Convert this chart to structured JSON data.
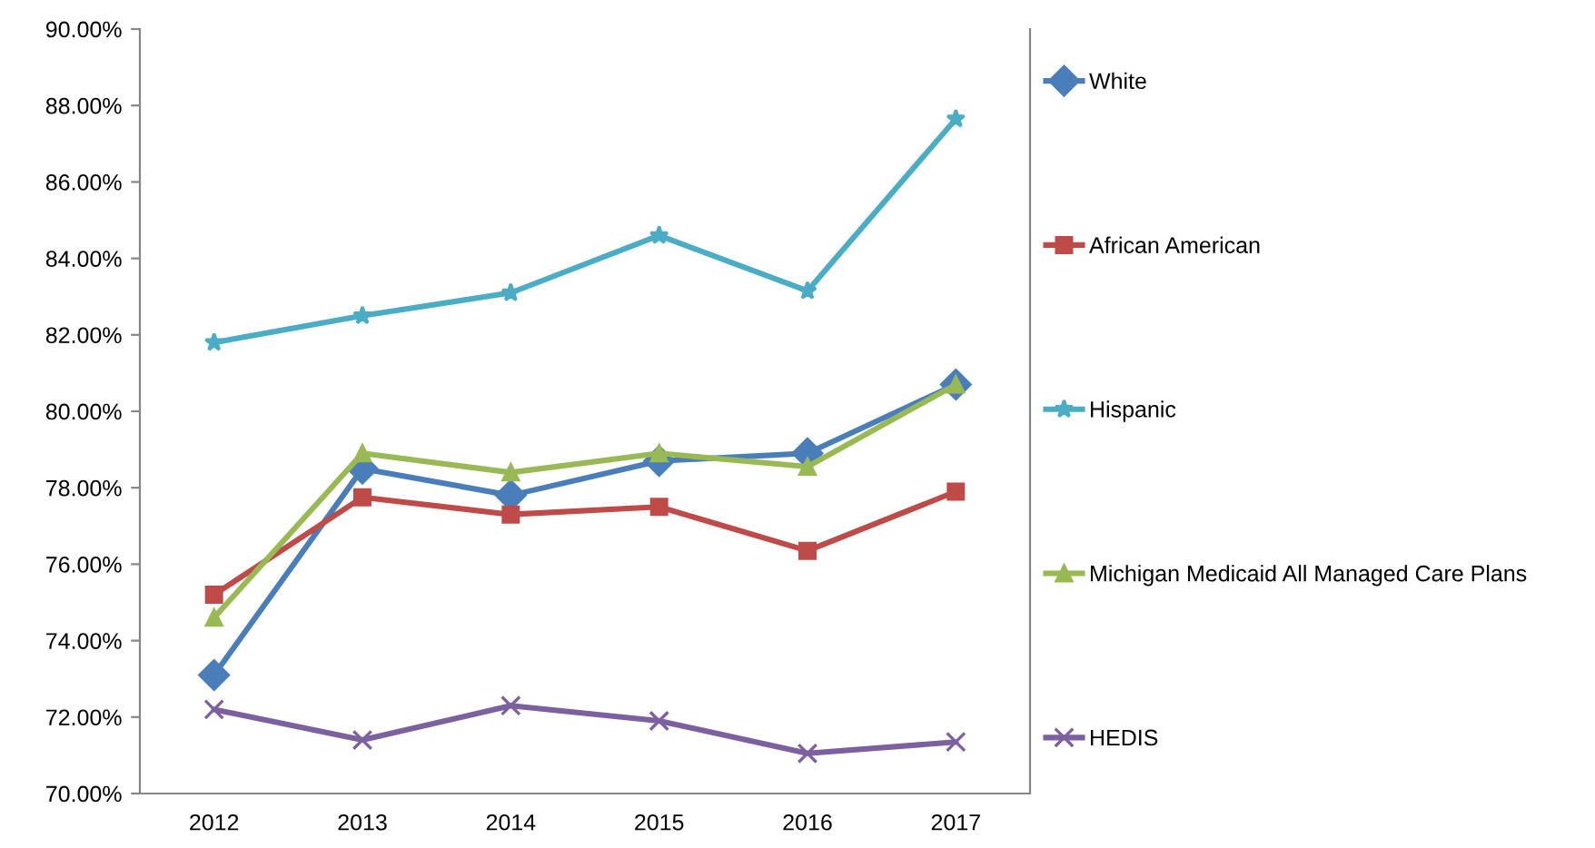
{
  "chart_data": {
    "type": "line",
    "categories": [
      "2012",
      "2013",
      "2014",
      "2015",
      "2016",
      "2017"
    ],
    "series": [
      {
        "name": "White",
        "color": "#4a7ebb",
        "marker": "diamond",
        "values": [
          73.1,
          78.5,
          77.8,
          78.7,
          78.9,
          80.7
        ]
      },
      {
        "name": "African American",
        "color": "#be4b48",
        "marker": "square",
        "values": [
          75.2,
          77.75,
          77.3,
          77.5,
          76.35,
          77.9
        ]
      },
      {
        "name": "Hispanic",
        "color": "#4bacc6",
        "marker": "star",
        "values": [
          81.8,
          82.5,
          83.1,
          84.6,
          83.15,
          87.65
        ]
      },
      {
        "name": "Michigan Medicaid All Managed Care Plans",
        "color": "#98b954",
        "marker": "triangle",
        "values": [
          74.6,
          78.9,
          78.4,
          78.9,
          78.55,
          80.7
        ]
      },
      {
        "name": "HEDIS",
        "color": "#7d60a0",
        "marker": "cross",
        "values": [
          72.2,
          71.4,
          72.3,
          71.9,
          71.05,
          71.35
        ]
      }
    ],
    "ylim": [
      70,
      90
    ],
    "yticks": [
      {
        "value": 70,
        "label": "70.00%"
      },
      {
        "value": 72,
        "label": "72.00%"
      },
      {
        "value": 74,
        "label": "74.00%"
      },
      {
        "value": 76,
        "label": "76.00%"
      },
      {
        "value": 78,
        "label": "78.00%"
      },
      {
        "value": 80,
        "label": "80.00%"
      },
      {
        "value": 82,
        "label": "82.00%"
      },
      {
        "value": 84,
        "label": "84.00%"
      },
      {
        "value": 86,
        "label": "86.00%"
      },
      {
        "value": 88,
        "label": "88.00%"
      },
      {
        "value": 90,
        "label": "90.00%"
      }
    ],
    "grid": false,
    "legend": "right",
    "line_style": "solid"
  }
}
